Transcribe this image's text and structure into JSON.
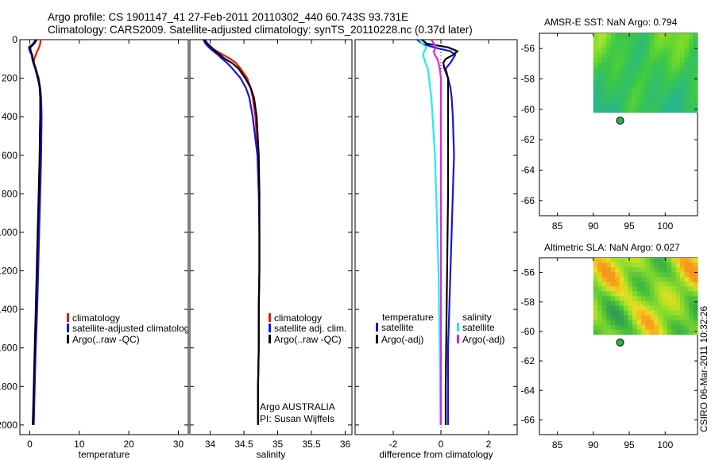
{
  "header": {
    "line1": "Argo profile: CS 1901147_41 27-Feb-2011 20110302_440 60.743S 93.731E",
    "line2": "Climatology: CARS2009. Satellite-adjusted climatology: synTS_20110228.nc (0.37d later)"
  },
  "side_stamp": "CSIRO 06-Mar-2011 10:32:26",
  "colors": {
    "red": "#e8180c",
    "blue": "#1414e6",
    "black": "#000000",
    "cyan": "#1eeeee",
    "magenta": "#e81ce8",
    "dot": "#2db24a"
  },
  "chart_data": [
    {
      "type": "line",
      "name": "temperature",
      "xlabel": "temperature",
      "ylabel": "",
      "xlim": [
        -2,
        32
      ],
      "ylim": [
        2050,
        0
      ],
      "xticks": [
        0,
        10,
        20,
        30
      ],
      "yticks": [
        0,
        200,
        400,
        600,
        800,
        1000,
        1200,
        1400,
        1600,
        1800,
        2000
      ],
      "y": [
        0,
        20,
        40,
        60,
        80,
        100,
        120,
        150,
        200,
        250,
        300,
        400,
        600,
        800,
        1000,
        1200,
        1400,
        1600,
        1800,
        2000
      ],
      "series": [
        {
          "name": "climatology",
          "color": "red",
          "values": [
            2.2,
            2.1,
            1.9,
            1.5,
            1.2,
            0.9,
            0.8,
            1.2,
            1.8,
            2.1,
            2.2,
            2.1,
            2.0,
            1.9,
            1.7,
            1.5,
            1.3,
            1.1,
            0.9,
            0.7
          ]
        },
        {
          "name": "satellite-adjusted climatology",
          "color": "blue",
          "values": [
            1.2,
            0.7,
            -0.2,
            0.0,
            0.4,
            0.5,
            0.7,
            1.1,
            1.6,
            2.1,
            2.3,
            2.4,
            2.3,
            2.1,
            1.9,
            1.7,
            1.5,
            1.2,
            1.0,
            0.8
          ]
        },
        {
          "name": "Argo(..raw -QC)",
          "color": "black",
          "values": [
            1.4,
            0.9,
            0.1,
            0.2,
            0.5,
            0.6,
            0.8,
            1.2,
            1.7,
            2.0,
            2.1,
            2.1,
            2.0,
            1.8,
            1.6,
            1.4,
            1.2,
            1.0,
            0.8,
            0.6
          ]
        }
      ],
      "legend": {
        "placement": "lower-right",
        "entries": [
          "climatology",
          "satellite-adjusted climatology",
          "Argo(..raw -QC)"
        ]
      }
    },
    {
      "type": "line",
      "name": "salinity",
      "xlabel": "salinity",
      "xlim": [
        33.7,
        36.1
      ],
      "ylim": [
        2050,
        0
      ],
      "xticks": [
        34,
        34.5,
        35,
        35.5,
        36
      ],
      "y": [
        0,
        20,
        40,
        60,
        80,
        100,
        120,
        150,
        200,
        250,
        300,
        400,
        600,
        800,
        1000,
        1200,
        1400,
        1600,
        1800,
        2000
      ],
      "series": [
        {
          "name": "climatology",
          "color": "red",
          "values": [
            33.9,
            33.95,
            34.0,
            34.1,
            34.2,
            34.3,
            34.38,
            34.45,
            34.55,
            34.6,
            34.63,
            34.67,
            34.71,
            34.73,
            34.73,
            34.73,
            34.72,
            34.72,
            34.71,
            34.71
          ]
        },
        {
          "name": "satellite adj. clim.",
          "color": "blue",
          "values": [
            33.9,
            33.93,
            33.98,
            34.05,
            34.12,
            34.18,
            34.25,
            34.33,
            34.45,
            34.53,
            34.58,
            34.63,
            34.7,
            34.72,
            34.73,
            34.73,
            34.72,
            34.72,
            34.71,
            34.71
          ]
        },
        {
          "name": "Argo(..raw -QC)",
          "color": "black",
          "values": [
            33.92,
            33.96,
            34.02,
            34.08,
            34.15,
            34.22,
            34.32,
            34.42,
            34.52,
            34.6,
            34.65,
            34.69,
            34.72,
            34.73,
            34.73,
            34.73,
            34.72,
            34.72,
            34.71,
            34.71
          ]
        }
      ],
      "legend": {
        "placement": "lower-right",
        "entries": [
          "climatology",
          "satellite adj. clim.",
          "Argo(..raw -QC)"
        ]
      },
      "annotation": [
        "Argo AUSTRALIA",
        "PI: Susan Wijffels"
      ]
    },
    {
      "type": "line",
      "name": "difference",
      "xlabel": "difference from climatology",
      "xlim": [
        -3.6,
        3.2
      ],
      "ylim": [
        2050,
        0
      ],
      "xticks": [
        -2,
        0,
        2
      ],
      "y": [
        0,
        20,
        40,
        60,
        80,
        100,
        120,
        150,
        200,
        250,
        300,
        400,
        600,
        800,
        1000,
        1200,
        1400,
        1600,
        1800,
        2000
      ],
      "series": [
        {
          "name": "temperature satellite",
          "color": "blue",
          "values": [
            -1.0,
            -0.8,
            -0.3,
            0.4,
            0.6,
            0.5,
            0.4,
            0.2,
            0.3,
            0.4,
            0.45,
            0.5,
            0.55,
            0.5,
            0.45,
            0.4,
            0.35,
            0.3,
            0.3,
            0.3
          ]
        },
        {
          "name": "temperature Argo(-adj)",
          "color": "black",
          "values": [
            -0.8,
            -0.6,
            0.3,
            0.7,
            0.5,
            0.2,
            0.1,
            0.15,
            0.3,
            0.3,
            0.3,
            0.3,
            0.3,
            0.3,
            0.28,
            0.26,
            0.24,
            0.22,
            0.2,
            0.2
          ]
        },
        {
          "name": "salinity satellite",
          "color": "cyan",
          "values": [
            -0.9,
            -0.8,
            -0.6,
            -0.7,
            -0.75,
            -0.7,
            -0.65,
            -0.55,
            -0.5,
            -0.45,
            -0.4,
            -0.35,
            -0.25,
            -0.2,
            -0.15,
            -0.1,
            -0.08,
            -0.05,
            -0.03,
            -0.02
          ]
        },
        {
          "name": "salinity Argo(-adj)",
          "color": "magenta",
          "values": [
            -0.4,
            -0.3,
            -0.2,
            -0.3,
            -0.25,
            -0.15,
            -0.1,
            -0.05,
            0.0,
            0.0,
            0.0,
            0.0,
            0.0,
            0.0,
            0.0,
            0.0,
            0.0,
            0.0,
            0.0,
            0.0
          ]
        }
      ],
      "legend": {
        "placement": "lower-right",
        "groups": [
          "temperature",
          "salinity"
        ],
        "entries": [
          "satellite",
          "Argo(-adj)",
          "satellite",
          "Argo(-adj)"
        ]
      }
    },
    {
      "type": "heatmap",
      "name": "sst_map",
      "title": "AMSR-E SST: NaN Argo: 0.794",
      "xlim": [
        82.5,
        104.5
      ],
      "ylim": [
        -67,
        -55
      ],
      "xticks": [
        85,
        90,
        95,
        100
      ],
      "yticks": [
        -56,
        -58,
        -60,
        -62,
        -64,
        -66
      ],
      "data_extent": {
        "lon": [
          90,
          104.5
        ],
        "lat": [
          -60.2,
          -55
        ]
      },
      "point": {
        "lon": 93.731,
        "lat": -60.743
      }
    },
    {
      "type": "heatmap",
      "name": "sla_map",
      "title": "Altimetric SLA: NaN Argo: 0.027",
      "xlim": [
        82.5,
        104.5
      ],
      "ylim": [
        -67,
        -55
      ],
      "xticks": [
        85,
        90,
        95,
        100
      ],
      "yticks": [
        -56,
        -58,
        -60,
        -62,
        -64,
        -66
      ],
      "data_extent": {
        "lon": [
          90,
          104.5
        ],
        "lat": [
          -60.2,
          -55
        ]
      },
      "point": {
        "lon": 93.731,
        "lat": -60.743
      }
    }
  ]
}
